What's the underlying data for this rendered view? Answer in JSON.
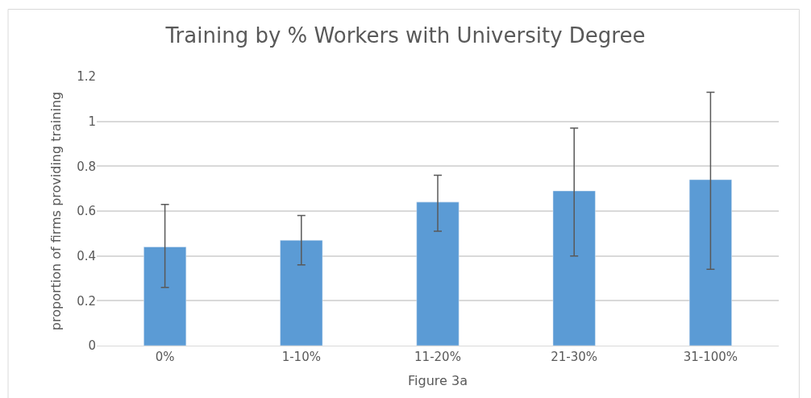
{
  "chart_data": {
    "type": "bar",
    "title": "Training by % Workers with University Degree",
    "xlabel": "Figure 3a",
    "ylabel": "proportion of firms providing training",
    "categories": [
      "0%",
      "1-10%",
      "11-20%",
      "21-30%",
      "31-100%"
    ],
    "values": [
      0.44,
      0.47,
      0.64,
      0.69,
      0.74
    ],
    "errors": [
      [
        0.26,
        0.63
      ],
      [
        0.36,
        0.58
      ],
      [
        0.51,
        0.76
      ],
      [
        0.4,
        0.97
      ],
      [
        0.34,
        1.13
      ]
    ],
    "color": "#5b9bd5",
    "ylim": [
      0,
      1.2
    ],
    "yticks": [
      0,
      0.2,
      0.4,
      0.6,
      0.8,
      {
        "value": 1,
        "label": "1"
      },
      1.2
    ],
    "grid": "y"
  }
}
